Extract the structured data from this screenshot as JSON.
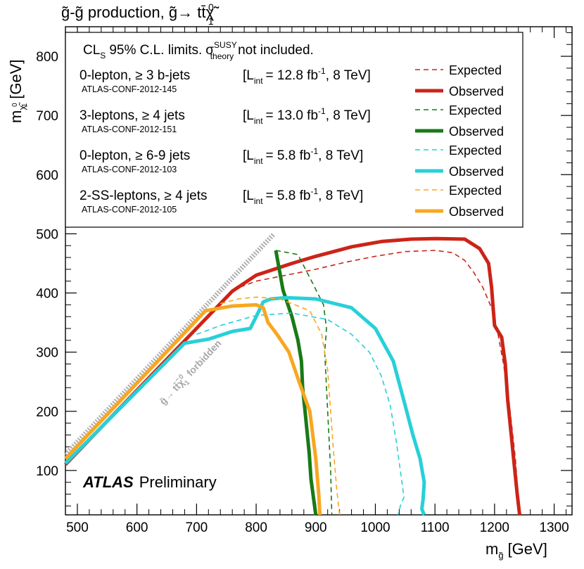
{
  "chart_data": {
    "type": "line",
    "title": "g̃-g̃ production, g̃→ tt̄χ̃",
    "title_sup": "0",
    "title_sub": "1",
    "xlabel": "m",
    "xlabel_sub": "g̃",
    "xlabel_unit": "[GeV]",
    "ylabel": "m",
    "ylabel_sub": "χ̃",
    "ylabel_subsup": "0",
    "ylabel_subsub": "1",
    "ylabel_unit": "[GeV]",
    "xlim": [
      480,
      1330
    ],
    "ylim": [
      25,
      850
    ],
    "xticks": [
      500,
      600,
      700,
      800,
      900,
      1000,
      1100,
      1200,
      1300
    ],
    "yticks": [
      100,
      200,
      300,
      400,
      500,
      600,
      700,
      800
    ],
    "grid": false,
    "legend_header": {
      "cl": "CL",
      "cl_sub": "S",
      "rest": "95% C.L. limits.",
      "sigma": "σ",
      "sigma_sup": "SUSY",
      "sigma_sub": "theory",
      "tail": "not included."
    },
    "analyses": [
      {
        "name": "0-lepton, ≥ 3 b-jets",
        "ref": "ATLAS-CONF-2012-145",
        "lumi_pre": "[L",
        "lumi_sub": "int",
        "lumi_mid": "= 12.8 fb",
        "lumi_sup": "-1",
        "lumi_post": ", 8 TeV]"
      },
      {
        "name": "3-leptons, ≥ 4 jets",
        "ref": "ATLAS-CONF-2012-151",
        "lumi_pre": "[L",
        "lumi_sub": "int",
        "lumi_mid": "= 13.0 fb",
        "lumi_sup": "-1",
        "lumi_post": ", 8 TeV]"
      },
      {
        "name": "0-lepton, ≥ 6-9 jets",
        "ref": "ATLAS-CONF-2012-103",
        "lumi_pre": "[L",
        "lumi_sub": "int",
        "lumi_mid": "= 5.8 fb",
        "lumi_sup": "-1",
        "lumi_post": ", 8 TeV]"
      },
      {
        "name": "2-SS-leptons, ≥ 4 jets",
        "ref": "ATLAS-CONF-2012-105",
        "lumi_pre": "[L",
        "lumi_sub": "int",
        "lumi_mid": "= 5.8 fb",
        "lumi_sup": "-1",
        "lumi_post": ", 8 TeV]"
      }
    ],
    "legend_expected": "Expected",
    "legend_observed": "Observed",
    "series": [
      {
        "name": "0-lepton, ≥ 3 b-jets Observed",
        "kind": "observed",
        "color": "#cc2418",
        "x": [
          480,
          760,
          800,
          860,
          900,
          960,
          1010,
          1060,
          1100,
          1150,
          1175,
          1190,
          1195,
          1198,
          1200,
          1212,
          1218,
          1222,
          1228,
          1233,
          1238,
          1242
        ],
        "y": [
          110,
          403,
          430,
          450,
          462,
          478,
          487,
          491,
          492,
          491,
          475,
          450,
          410,
          370,
          345,
          325,
          280,
          220,
          160,
          110,
          60,
          25
        ]
      },
      {
        "name": "0-lepton, ≥ 3 b-jets Expected",
        "kind": "expected",
        "color": "#cc2418",
        "x": [
          760,
          800,
          850,
          900,
          950,
          1000,
          1050,
          1100,
          1130,
          1150,
          1165,
          1180,
          1195,
          1205,
          1215,
          1225,
          1235,
          1242
        ],
        "y": [
          405,
          420,
          430,
          440,
          452,
          462,
          470,
          472,
          468,
          455,
          435,
          410,
          375,
          335,
          280,
          210,
          120,
          25
        ]
      },
      {
        "name": "3-leptons, ≥ 4 jets Observed",
        "kind": "observed",
        "color": "#197a16",
        "x": [
          833,
          845,
          860,
          870,
          876,
          878,
          883,
          889,
          892,
          896,
          900
        ],
        "y": [
          472,
          405,
          360,
          320,
          285,
          240,
          190,
          130,
          85,
          55,
          25
        ]
      },
      {
        "name": "3-leptons, ≥ 4 jets Expected",
        "kind": "expected",
        "color": "#197a16",
        "x": [
          833,
          870,
          893,
          913,
          918,
          915,
          920,
          925,
          927
        ],
        "y": [
          472,
          465,
          420,
          380,
          340,
          300,
          200,
          100,
          25
        ]
      },
      {
        "name": "0-lepton, ≥ 6-9 jets Observed",
        "kind": "observed",
        "color": "#28d0d8",
        "x": [
          480,
          680,
          720,
          760,
          790,
          800,
          812,
          825,
          850,
          900,
          960,
          1000,
          1030,
          1050,
          1063,
          1075,
          1082,
          1080,
          1078,
          1082
        ],
        "y": [
          112,
          315,
          322,
          335,
          340,
          360,
          385,
          390,
          392,
          390,
          375,
          340,
          285,
          210,
          160,
          120,
          80,
          50,
          35,
          25
        ]
      },
      {
        "name": "0-lepton, ≥ 6-9 jets Expected",
        "kind": "expected",
        "color": "#28d0d8",
        "x": [
          700,
          740,
          800,
          860,
          920,
          960,
          990,
          1010,
          1025,
          1035,
          1042,
          1048,
          1042,
          1038
        ],
        "y": [
          330,
          345,
          362,
          366,
          355,
          330,
          300,
          260,
          210,
          150,
          100,
          55,
          40,
          25
        ]
      },
      {
        "name": "2-SS-leptons, ≥ 4 jets Observed",
        "kind": "observed",
        "color": "#f8a721",
        "x": [
          480,
          715,
          760,
          800,
          812,
          820,
          835,
          855,
          872,
          890,
          900,
          905,
          907
        ],
        "y": [
          120,
          370,
          378,
          380,
          375,
          350,
          330,
          300,
          250,
          200,
          120,
          60,
          25
        ]
      },
      {
        "name": "2-SS-leptons, ≥ 4 jets Expected",
        "kind": "expected",
        "color": "#f8a721",
        "x": [
          740,
          770,
          800,
          840,
          890,
          910,
          920,
          925,
          930,
          935,
          940
        ],
        "y": [
          382,
          390,
          393,
          390,
          370,
          330,
          270,
          200,
          130,
          70,
          25
        ]
      }
    ],
    "forbidden_line": {
      "x": [
        480,
        830
      ],
      "y": [
        127,
        500
      ],
      "label": "g̃→ tt̄χ̃",
      "label_sup": "0",
      "label_sub": "1",
      "label_tail": "forbidden"
    },
    "annotation": {
      "brand": "ATLAS",
      "text": "Preliminary"
    },
    "colors": {
      "frame": "#000000",
      "forbidden": "#b0b0b0"
    }
  }
}
